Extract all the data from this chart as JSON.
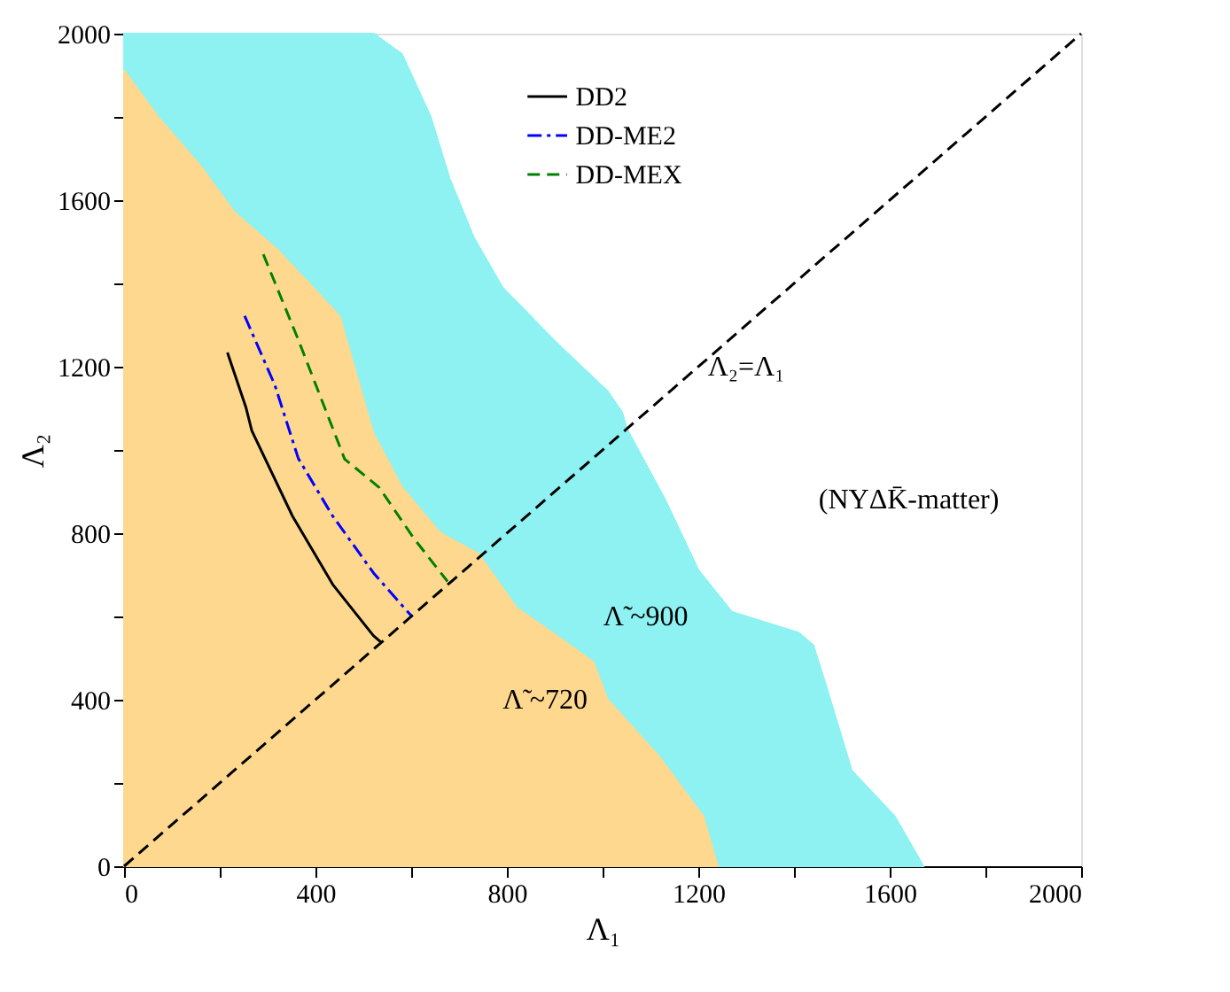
{
  "chart_data": {
    "type": "line",
    "xlabel": "Λ₁",
    "ylabel": "Λ₂",
    "xlim": [
      0,
      2000
    ],
    "ylim": [
      0,
      2000
    ],
    "xticks": [
      0,
      {
        "value": 200,
        "label": null
      },
      400,
      {
        "value": 600,
        "label": null
      },
      800,
      {
        "value": 1000,
        "label": null
      },
      1200,
      {
        "value": 1400,
        "label": null
      },
      1600,
      {
        "value": 1800,
        "label": null
      },
      2000
    ],
    "yticks": [
      0,
      {
        "value": 200,
        "label": null
      },
      400,
      {
        "value": 600,
        "label": null
      },
      800,
      {
        "value": 1000,
        "label": null
      },
      1200,
      {
        "value": 1400,
        "label": null
      },
      1600,
      {
        "value": 1800,
        "label": null
      },
      2000
    ],
    "grid": false,
    "legend": "top",
    "series": [
      {
        "type": "area",
        "color": "#8ef2f2",
        "x": [
          0,
          520,
          580,
          640,
          680,
          730,
          790,
          900,
          1010,
          1040,
          1050,
          1130,
          1200,
          1270,
          1410,
          1440,
          1470,
          1520,
          1610,
          1670
        ],
        "values": [
          2000,
          2000,
          1950,
          1800,
          1650,
          1510,
          1390,
          1260,
          1140,
          1090,
          1050,
          880,
          710,
          610,
          560,
          530,
          420,
          230,
          120,
          0
        ]
      },
      {
        "type": "area",
        "color": "#fdd88e",
        "x": [
          0,
          70,
          160,
          230,
          320,
          410,
          450,
          490,
          520,
          580,
          660,
          740,
          820,
          920,
          980,
          1010,
          1120,
          1210,
          1240
        ],
        "values": [
          1910,
          1800,
          1680,
          1570,
          1480,
          1370,
          1320,
          1160,
          1040,
          910,
          800,
          750,
          620,
          540,
          490,
          400,
          260,
          120,
          0
        ]
      },
      {
        "name": "DD2",
        "color": "#000000",
        "line_style": "solid",
        "x": [
          216,
          255,
          267,
          352,
          436,
          521,
          537
        ],
        "values": [
          1234,
          1101,
          1046,
          841,
          677,
          554,
          538
        ]
      },
      {
        "name": "DD-ME2",
        "color": "#0000ff",
        "line_style": "dashdot",
        "x": [
          252,
          315,
          364,
          436,
          521,
          600
        ],
        "values": [
          1322,
          1156,
          980,
          841,
          705,
          602
        ]
      },
      {
        "name": "DD-MEX",
        "color": "#008000",
        "line_style": "dashed",
        "x": [
          291,
          364,
          461,
          533,
          606,
          676
        ],
        "values": [
          1470,
          1265,
          978,
          910,
          787,
          684
        ]
      },
      {
        "color": "#000000",
        "line_style": "dashed",
        "x": [
          0,
          2000
        ],
        "values": [
          0,
          2000
        ]
      }
    ],
    "annotations": [
      "Λ₂=Λ₁",
      "(NYΔK̄-matter)",
      {
        "text": "Λ̃ ~900",
        "x": 1090,
        "y": 600
      },
      {
        "text": "Λ̃ ~720",
        "x": 880,
        "y": 400
      }
    ]
  }
}
